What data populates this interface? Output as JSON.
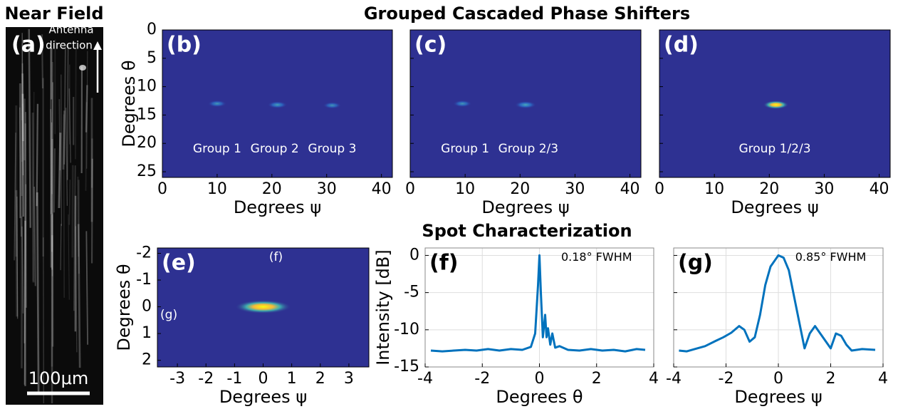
{
  "near_field": {
    "title": "Near Field",
    "label": "(a)",
    "annotation": [
      "Antenna",
      "direction"
    ],
    "scale_bar": "100μm"
  },
  "section_titles": [
    "Grouped Cascaded Phase Shifters",
    "Spot Characterization"
  ],
  "chart_data": [
    {
      "type": "heatmap",
      "label": "(b)",
      "xlabel": "Degrees ψ",
      "ylabel": "Degrees θ",
      "xlim": [
        0,
        42
      ],
      "ylim": [
        0,
        26
      ],
      "y_reversed": true,
      "xticks": [
        0,
        10,
        20,
        30,
        40
      ],
      "yticks": [
        0,
        5,
        10,
        15,
        20,
        25
      ],
      "show_ytick_labels": true,
      "background": "#2e3192",
      "spots": {
        "x": [
          10,
          21,
          31
        ],
        "y": [
          13,
          13.2,
          13.3
        ],
        "intensity": [
          0.4,
          0.5,
          0.35
        ]
      },
      "annotations": [
        {
          "text": "Group 1",
          "x": 10,
          "y": 21
        },
        {
          "text": "Group 2",
          "x": 20.5,
          "y": 21
        },
        {
          "text": "Group 3",
          "x": 31,
          "y": 21
        }
      ]
    },
    {
      "type": "heatmap",
      "label": "(c)",
      "xlabel": "Degrees ψ",
      "xlim": [
        0,
        42
      ],
      "ylim": [
        0,
        26
      ],
      "y_reversed": true,
      "xticks": [
        0,
        10,
        20,
        30,
        40
      ],
      "yticks": [
        0,
        5,
        10,
        15,
        20,
        25
      ],
      "show_ytick_labels": false,
      "background": "#2e3192",
      "spots": {
        "x": [
          9.5,
          21
        ],
        "y": [
          13,
          13.2
        ],
        "intensity": [
          0.4,
          0.65
        ]
      },
      "annotations": [
        {
          "text": "Group 1",
          "x": 10,
          "y": 21
        },
        {
          "text": "Group 2/3",
          "x": 21.5,
          "y": 21
        }
      ]
    },
    {
      "type": "heatmap",
      "label": "(d)",
      "xlabel": "Degrees ψ",
      "xlim": [
        0,
        42
      ],
      "ylim": [
        0,
        26
      ],
      "y_reversed": true,
      "xticks": [
        0,
        10,
        20,
        30,
        40
      ],
      "yticks": [
        0,
        5,
        10,
        15,
        20,
        25
      ],
      "show_ytick_labels": false,
      "background": "#2e3192",
      "spots": {
        "x": [
          21.2
        ],
        "y": [
          13.2
        ],
        "intensity": [
          1
        ]
      },
      "annotations": [
        {
          "text": "Group 1/2/3",
          "x": 21,
          "y": 21
        }
      ]
    },
    {
      "type": "heatmap",
      "label": "(e)",
      "xlabel": "Degrees ψ",
      "ylabel": "Degrees θ",
      "xlim": [
        -3.7,
        3.7
      ],
      "ylim": [
        -2.2,
        2.25
      ],
      "y_reversed": true,
      "xticks": [
        -3,
        -2,
        -1,
        0,
        1,
        2,
        3
      ],
      "yticks": [
        -2,
        -1,
        0,
        1,
        2
      ],
      "show_ytick_labels": true,
      "background": "#2e3192",
      "spots": {
        "x": [
          0
        ],
        "y": [
          0
        ],
        "intensity": [
          1
        ]
      },
      "annotations": [
        {
          "text": "(f)",
          "x": 0.45,
          "y": -1.85
        },
        {
          "text": "(g)",
          "x": -3.3,
          "y": 0.3
        }
      ]
    },
    {
      "type": "line",
      "label": "(f)",
      "xlabel": "Degrees θ",
      "ylabel": "Intensity [dB]",
      "xlim": [
        -4,
        4
      ],
      "ylim": [
        -15,
        1
      ],
      "xticks": [
        -4,
        -2,
        0,
        2,
        4
      ],
      "yticks": [
        -15,
        -10,
        -5,
        0
      ],
      "show_ytick_labels": true,
      "grid": true,
      "color": "#0072bd",
      "x": [
        -3.8,
        -3.4,
        -3.0,
        -2.6,
        -2.2,
        -1.8,
        -1.4,
        -1.0,
        -0.6,
        -0.3,
        -0.15,
        -0.05,
        0,
        0.05,
        0.12,
        0.2,
        0.25,
        0.3,
        0.38,
        0.45,
        0.55,
        0.7,
        1.0,
        1.4,
        1.8,
        2.2,
        2.6,
        3.0,
        3.4,
        3.7
      ],
      "values": [
        -12.8,
        -12.9,
        -12.8,
        -12.7,
        -12.8,
        -12.6,
        -12.8,
        -12.6,
        -12.7,
        -12.3,
        -10.5,
        -4,
        0,
        -5,
        -11,
        -8,
        -11,
        -9.8,
        -12,
        -10.5,
        -12.4,
        -12.2,
        -12.7,
        -12.8,
        -12.6,
        -12.8,
        -12.7,
        -12.9,
        -12.6,
        -12.7
      ],
      "annotations": [
        {
          "text": "0.18° FWHM",
          "x": 2.0,
          "y": -0.3
        }
      ]
    },
    {
      "type": "line",
      "label": "(g)",
      "xlabel": "Degrees ψ",
      "xlim": [
        -4,
        4
      ],
      "ylim": [
        -15,
        1
      ],
      "xticks": [
        -4,
        -2,
        0,
        2,
        4
      ],
      "yticks": [
        -15,
        -10,
        -5,
        0
      ],
      "show_ytick_labels": false,
      "grid": true,
      "color": "#0072bd",
      "x": [
        -3.8,
        -3.5,
        -3.2,
        -2.8,
        -2.4,
        -2.1,
        -1.8,
        -1.5,
        -1.3,
        -1.1,
        -0.9,
        -0.7,
        -0.5,
        -0.3,
        -0.1,
        0,
        0.2,
        0.4,
        0.6,
        0.8,
        1.0,
        1.2,
        1.4,
        1.6,
        1.8,
        2.0,
        2.2,
        2.4,
        2.6,
        2.8,
        3.2,
        3.7
      ],
      "values": [
        -12.8,
        -12.9,
        -12.6,
        -12.2,
        -11.5,
        -11,
        -10.4,
        -9.5,
        -10,
        -11.6,
        -11,
        -8,
        -4,
        -1.5,
        -0.5,
        0,
        -0.3,
        -2,
        -5.5,
        -9,
        -12.5,
        -10.5,
        -9.5,
        -10.5,
        -11.5,
        -12.5,
        -10.5,
        -10.8,
        -12,
        -12.8,
        -12.6,
        -12.7
      ],
      "annotations": [
        {
          "text": "0.85° FWHM",
          "x": 2.0,
          "y": -0.3
        }
      ]
    }
  ]
}
